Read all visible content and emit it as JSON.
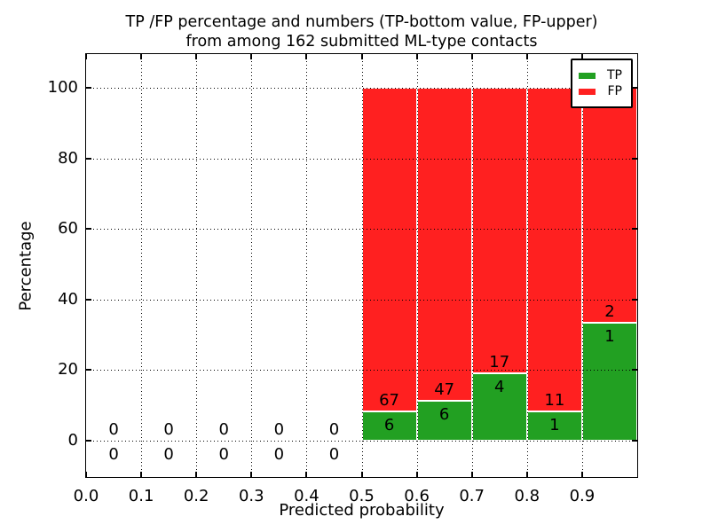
{
  "figure": {
    "title_line1": "TP /FP percentage and numbers (TP-bottom value, FP-upper)",
    "title_line2": "from among 162 submitted ML-type contacts"
  },
  "axes": {
    "x_label": "Predicted probability",
    "y_label": "Percentage",
    "x_ticks": [
      "0.0",
      "0.1",
      "0.2",
      "0.3",
      "0.4",
      "0.5",
      "0.6",
      "0.7",
      "0.8",
      "0.9"
    ],
    "y_ticks": [
      "0",
      "20",
      "40",
      "60",
      "80",
      "100"
    ]
  },
  "legend": {
    "items": [
      {
        "label": "TP",
        "color": "#22a022"
      },
      {
        "label": "FP",
        "color": "#ff2020"
      }
    ]
  },
  "colors": {
    "tp": "#22a022",
    "fp": "#ff2020",
    "grid": "#000000",
    "background": "#ffffff"
  },
  "chart_data": {
    "type": "bar",
    "stacked": true,
    "normalized": "percent",
    "title": "TP /FP percentage and numbers (TP-bottom value, FP-upper) from among 162 submitted ML-type contacts",
    "xlabel": "Predicted probability",
    "ylabel": "Percentage",
    "xlim": [
      0.0,
      1.0
    ],
    "ylim": [
      -11,
      110
    ],
    "grid": "dotted",
    "legend_position": "upper right",
    "total_contacts": 162,
    "bins": [
      {
        "range": [
          0.0,
          0.1
        ],
        "tp": 0,
        "fp": 0
      },
      {
        "range": [
          0.1,
          0.2
        ],
        "tp": 0,
        "fp": 0
      },
      {
        "range": [
          0.2,
          0.3
        ],
        "tp": 0,
        "fp": 0
      },
      {
        "range": [
          0.3,
          0.4
        ],
        "tp": 0,
        "fp": 0
      },
      {
        "range": [
          0.4,
          0.5
        ],
        "tp": 0,
        "fp": 0
      },
      {
        "range": [
          0.5,
          0.6
        ],
        "tp": 6,
        "fp": 67
      },
      {
        "range": [
          0.6,
          0.7
        ],
        "tp": 6,
        "fp": 47
      },
      {
        "range": [
          0.7,
          0.8
        ],
        "tp": 4,
        "fp": 17
      },
      {
        "range": [
          0.8,
          0.9
        ],
        "tp": 1,
        "fp": 11
      },
      {
        "range": [
          0.9,
          1.0
        ],
        "tp": 1,
        "fp": 2
      }
    ],
    "series": [
      {
        "name": "TP",
        "values": [
          0,
          0,
          0,
          0,
          0,
          6,
          6,
          4,
          1,
          1
        ],
        "color": "#22a022"
      },
      {
        "name": "FP",
        "values": [
          0,
          0,
          0,
          0,
          0,
          67,
          47,
          17,
          11,
          2
        ],
        "color": "#ff2020"
      }
    ]
  }
}
